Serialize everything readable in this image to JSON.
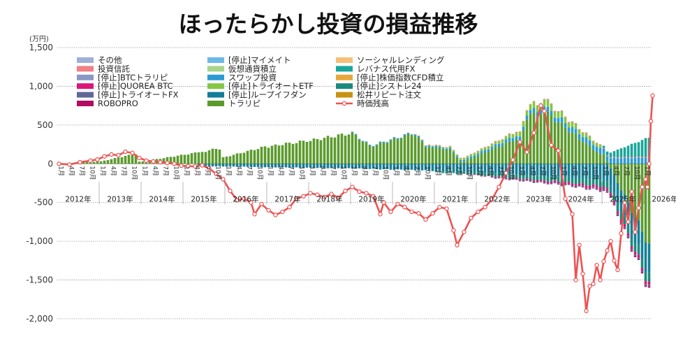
{
  "chart_data": {
    "type": "bar",
    "stacked": true,
    "title": "ほったらかし投資の損益推移",
    "unit": "(万円)",
    "yticks": [
      1500,
      1000,
      500,
      0,
      -500,
      -1000,
      -1500,
      -2000
    ],
    "ylim": [
      -2000,
      1500
    ],
    "grid": true,
    "legend_position": "top-left",
    "start": "2012-01",
    "months": 170,
    "year_labels": [
      "2012年",
      "2013年",
      "2014年",
      "2015年",
      "2016年",
      "2017年",
      "2018年",
      "2019年",
      "2020年",
      "2021年",
      "2022年",
      "2023年",
      "2024年",
      "2025年",
      "2026年"
    ],
    "month_labels": [
      "1月",
      "4月",
      "7月",
      "10月"
    ],
    "legend": [
      {
        "name": "その他",
        "color": "#9fb0d8"
      },
      {
        "name": "[停止]マイメイト",
        "color": "#6cb8e6"
      },
      {
        "name": "ソーシャルレンディング",
        "color": "#f5c07a"
      },
      {
        "name": "投資信託",
        "color": "#f07f86"
      },
      {
        "name": "仮想通貨積立",
        "color": "#a7d58c"
      },
      {
        "name": "レバナス代用FX",
        "color": "#1aa59a"
      },
      {
        "name": "[停止]BTCトラリピ",
        "color": "#8a98c4"
      },
      {
        "name": "スワップ投資",
        "color": "#2b9bd2"
      },
      {
        "name": "[停止]株価指数CFD積立",
        "color": "#e9a83c"
      },
      {
        "name": "[停止]QUOREA BTC",
        "color": "#d7177a"
      },
      {
        "name": "[停止]トライオートETF",
        "color": "#86c545"
      },
      {
        "name": "[停止]シストレ24",
        "color": "#1b8a7c"
      },
      {
        "name": "[停止]トライオートFX",
        "color": "#5e6797"
      },
      {
        "name": "[停止]ループイフダン",
        "color": "#137e97"
      },
      {
        "name": "松井リピート注文",
        "color": "#c89212"
      },
      {
        "name": "ROBOPRO",
        "color": "#b10d61"
      },
      {
        "name": "トラリピ",
        "color": "#5b9b2d"
      },
      {
        "name": "時価残高",
        "color": "#ee5252"
      }
    ],
    "series": [
      {
        "name": "トラリピ",
        "color": "#5b9b2d",
        "segments": [
          {
            "from": 0,
            "to": 12,
            "start": 0,
            "end": 30
          },
          {
            "from": 12,
            "to": 22,
            "start": 30,
            "end": 120
          },
          {
            "from": 22,
            "to": 24,
            "start": 120,
            "end": 30
          },
          {
            "from": 24,
            "to": 40,
            "start": 30,
            "end": 140
          },
          {
            "from": 40,
            "to": 46,
            "start": 140,
            "end": 195
          },
          {
            "from": 46,
            "to": 47,
            "start": 195,
            "end": 80
          },
          {
            "from": 47,
            "to": 60,
            "start": 80,
            "end": 220
          },
          {
            "from": 60,
            "to": 66,
            "start": 220,
            "end": 260
          },
          {
            "from": 66,
            "to": 72,
            "start": 260,
            "end": 300
          },
          {
            "from": 72,
            "to": 84,
            "start": 300,
            "end": 390
          },
          {
            "from": 84,
            "to": 90,
            "start": 390,
            "end": 230
          },
          {
            "from": 90,
            "to": 102,
            "start": 230,
            "end": 380
          },
          {
            "from": 102,
            "to": 106,
            "start": 380,
            "end": 220
          },
          {
            "from": 106,
            "to": 112,
            "start": 220,
            "end": 180
          },
          {
            "from": 112,
            "to": 116,
            "start": 180,
            "end": 30
          },
          {
            "from": 116,
            "to": 132,
            "start": 30,
            "end": 320
          },
          {
            "from": 132,
            "to": 136,
            "start": 320,
            "end": 650
          },
          {
            "from": 136,
            "to": 140,
            "start": 650,
            "end": 640
          },
          {
            "from": 140,
            "to": 156,
            "start": 640,
            "end": 120
          },
          {
            "from": 156,
            "to": 170,
            "start": 120,
            "end": -1050
          }
        ]
      },
      {
        "name": "スワップ投資",
        "color": "#2b9bd2",
        "segments": [
          {
            "from": 84,
            "to": 116,
            "start": 10,
            "end": 20
          },
          {
            "from": 116,
            "to": 140,
            "start": 20,
            "end": 60
          },
          {
            "from": 140,
            "to": 170,
            "start": 60,
            "end": 80
          }
        ]
      },
      {
        "name": "[停止]トライオートETF",
        "color": "#86c545",
        "segments": [
          {
            "from": 100,
            "to": 128,
            "start": 0,
            "end": 40
          },
          {
            "from": 128,
            "to": 140,
            "start": 40,
            "end": 90
          },
          {
            "from": 140,
            "to": 156,
            "start": 90,
            "end": 40
          }
        ]
      },
      {
        "name": "[停止]ループイフダン",
        "color": "#137e97",
        "segments": [
          {
            "from": 40,
            "to": 84,
            "start": -30,
            "end": -60
          },
          {
            "from": 84,
            "to": 116,
            "start": -60,
            "end": -100
          },
          {
            "from": 116,
            "to": 140,
            "start": -100,
            "end": -160
          },
          {
            "from": 140,
            "to": 156,
            "start": -160,
            "end": -200
          },
          {
            "from": 156,
            "to": 170,
            "start": -200,
            "end": -380
          }
        ]
      },
      {
        "name": "[停止]シストレ24",
        "color": "#1b8a7c",
        "segments": [
          {
            "from": 108,
            "to": 140,
            "start": -20,
            "end": -60
          },
          {
            "from": 140,
            "to": 170,
            "start": -60,
            "end": -120
          }
        ]
      },
      {
        "name": "[停止]QUOREA BTC",
        "color": "#d7177a",
        "segments": [
          {
            "from": 116,
            "to": 170,
            "start": -5,
            "end": -40
          }
        ]
      },
      {
        "name": "[停止]トライオートFX",
        "color": "#5e6797",
        "segments": [
          {
            "from": 124,
            "to": 170,
            "start": -10,
            "end": -20
          }
        ]
      },
      {
        "name": "投資信託",
        "color": "#f07f86",
        "segments": [
          {
            "from": 100,
            "to": 170,
            "start": 5,
            "end": 10
          }
        ]
      },
      {
        "name": "ROBOPRO",
        "color": "#b10d61",
        "segments": [
          {
            "from": 150,
            "to": 170,
            "start": -5,
            "end": -15
          }
        ]
      },
      {
        "name": "レバナス代用FX",
        "color": "#1aa59a",
        "segments": [
          {
            "from": 156,
            "to": 170,
            "start": 30,
            "end": 250
          }
        ]
      }
    ],
    "balance": {
      "name": "時価残高",
      "color": "#ee5252",
      "points": [
        [
          0,
          0
        ],
        [
          3,
          -10
        ],
        [
          6,
          20
        ],
        [
          9,
          40
        ],
        [
          11,
          55
        ],
        [
          13,
          95
        ],
        [
          15,
          120
        ],
        [
          17,
          110
        ],
        [
          19,
          155
        ],
        [
          21,
          140
        ],
        [
          23,
          75
        ],
        [
          25,
          40
        ],
        [
          27,
          30
        ],
        [
          29,
          20
        ],
        [
          31,
          10
        ],
        [
          33,
          0
        ],
        [
          35,
          -25
        ],
        [
          37,
          -30
        ],
        [
          39,
          -35
        ],
        [
          41,
          -20
        ],
        [
          43,
          -60
        ],
        [
          45,
          -130
        ],
        [
          47,
          -200
        ],
        [
          49,
          -350
        ],
        [
          51,
          -470
        ],
        [
          53,
          -450
        ],
        [
          55,
          -500
        ],
        [
          56,
          -650
        ],
        [
          58,
          -520
        ],
        [
          60,
          -600
        ],
        [
          62,
          -660
        ],
        [
          64,
          -620
        ],
        [
          66,
          -560
        ],
        [
          68,
          -450
        ],
        [
          70,
          -420
        ],
        [
          72,
          -380
        ],
        [
          74,
          -400
        ],
        [
          76,
          -430
        ],
        [
          78,
          -390
        ],
        [
          80,
          -440
        ],
        [
          82,
          -350
        ],
        [
          84,
          -300
        ],
        [
          86,
          -360
        ],
        [
          88,
          -380
        ],
        [
          90,
          -420
        ],
        [
          92,
          -650
        ],
        [
          93,
          -500
        ],
        [
          95,
          -620
        ],
        [
          97,
          -520
        ],
        [
          99,
          -560
        ],
        [
          101,
          -620
        ],
        [
          103,
          -640
        ],
        [
          105,
          -720
        ],
        [
          107,
          -640
        ],
        [
          109,
          -560
        ],
        [
          111,
          -580
        ],
        [
          113,
          -860
        ],
        [
          114,
          -1050
        ],
        [
          116,
          -880
        ],
        [
          118,
          -700
        ],
        [
          120,
          -620
        ],
        [
          122,
          -560
        ],
        [
          124,
          -460
        ],
        [
          126,
          -300
        ],
        [
          128,
          -120
        ],
        [
          130,
          50
        ],
        [
          132,
          280
        ],
        [
          134,
          150
        ],
        [
          136,
          400
        ],
        [
          138,
          750
        ],
        [
          139,
          680
        ],
        [
          141,
          240
        ],
        [
          143,
          170
        ],
        [
          145,
          -450
        ],
        [
          147,
          -650
        ],
        [
          148,
          -1500
        ],
        [
          149,
          -1050
        ],
        [
          150,
          -1420
        ],
        [
          151,
          -1900
        ],
        [
          152,
          -1580
        ],
        [
          153,
          -1550
        ],
        [
          154,
          -1310
        ],
        [
          155,
          -1500
        ],
        [
          156,
          -1260
        ],
        [
          157,
          -1120
        ],
        [
          158,
          -1000
        ],
        [
          159,
          -1250
        ],
        [
          160,
          -1370
        ],
        [
          161,
          -900
        ],
        [
          162,
          -500
        ],
        [
          163,
          -750
        ],
        [
          164,
          -360
        ],
        [
          165,
          -880
        ],
        [
          166,
          -570
        ],
        [
          167,
          -300
        ],
        [
          168,
          -200
        ],
        [
          168.5,
          -300
        ],
        [
          169,
          0
        ],
        [
          169.5,
          550
        ],
        [
          170,
          880
        ]
      ]
    }
  }
}
